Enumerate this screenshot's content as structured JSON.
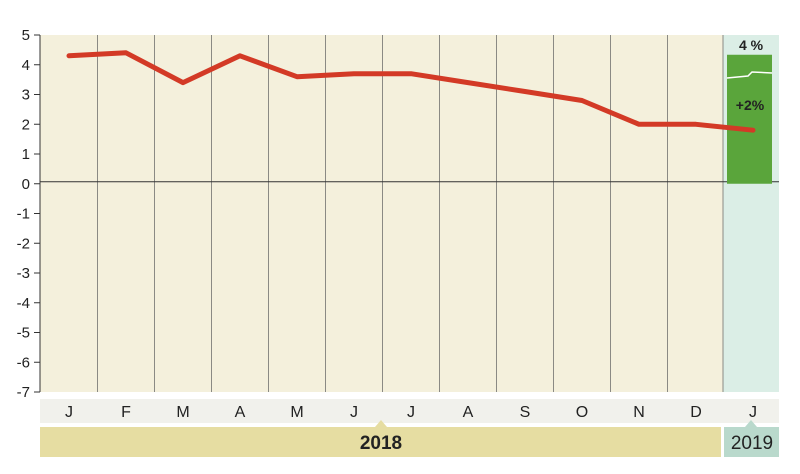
{
  "chart_data": {
    "type": "line",
    "categories": [
      "J",
      "F",
      "M",
      "A",
      "M",
      "J",
      "J",
      "A",
      "S",
      "O",
      "N",
      "D",
      "J"
    ],
    "series": [
      {
        "values": [
          4.3,
          4.4,
          3.4,
          4.3,
          3.6,
          3.7,
          3.7,
          3.4,
          3.1,
          2.8,
          2.0,
          2.0,
          1.8
        ]
      }
    ],
    "ylim": [
      -7,
      5
    ],
    "yticks": [
      5,
      4,
      3,
      2,
      1,
      0,
      -1,
      -2,
      -3,
      -4,
      -5,
      -6,
      -7
    ],
    "years": [
      {
        "label": "2018"
      },
      {
        "label": "2019"
      }
    ],
    "target_bar": {
      "value": 4,
      "label_top": "4 %",
      "label_inner": "+2%",
      "color": "#5aa53b"
    },
    "colors": {
      "plot_bg": "#f4f0dc",
      "highlight_bg": "#dbeee6",
      "line": "#d33a26",
      "year_band": "#e6dda2",
      "year_band_2019": "#b9d9cc"
    }
  }
}
